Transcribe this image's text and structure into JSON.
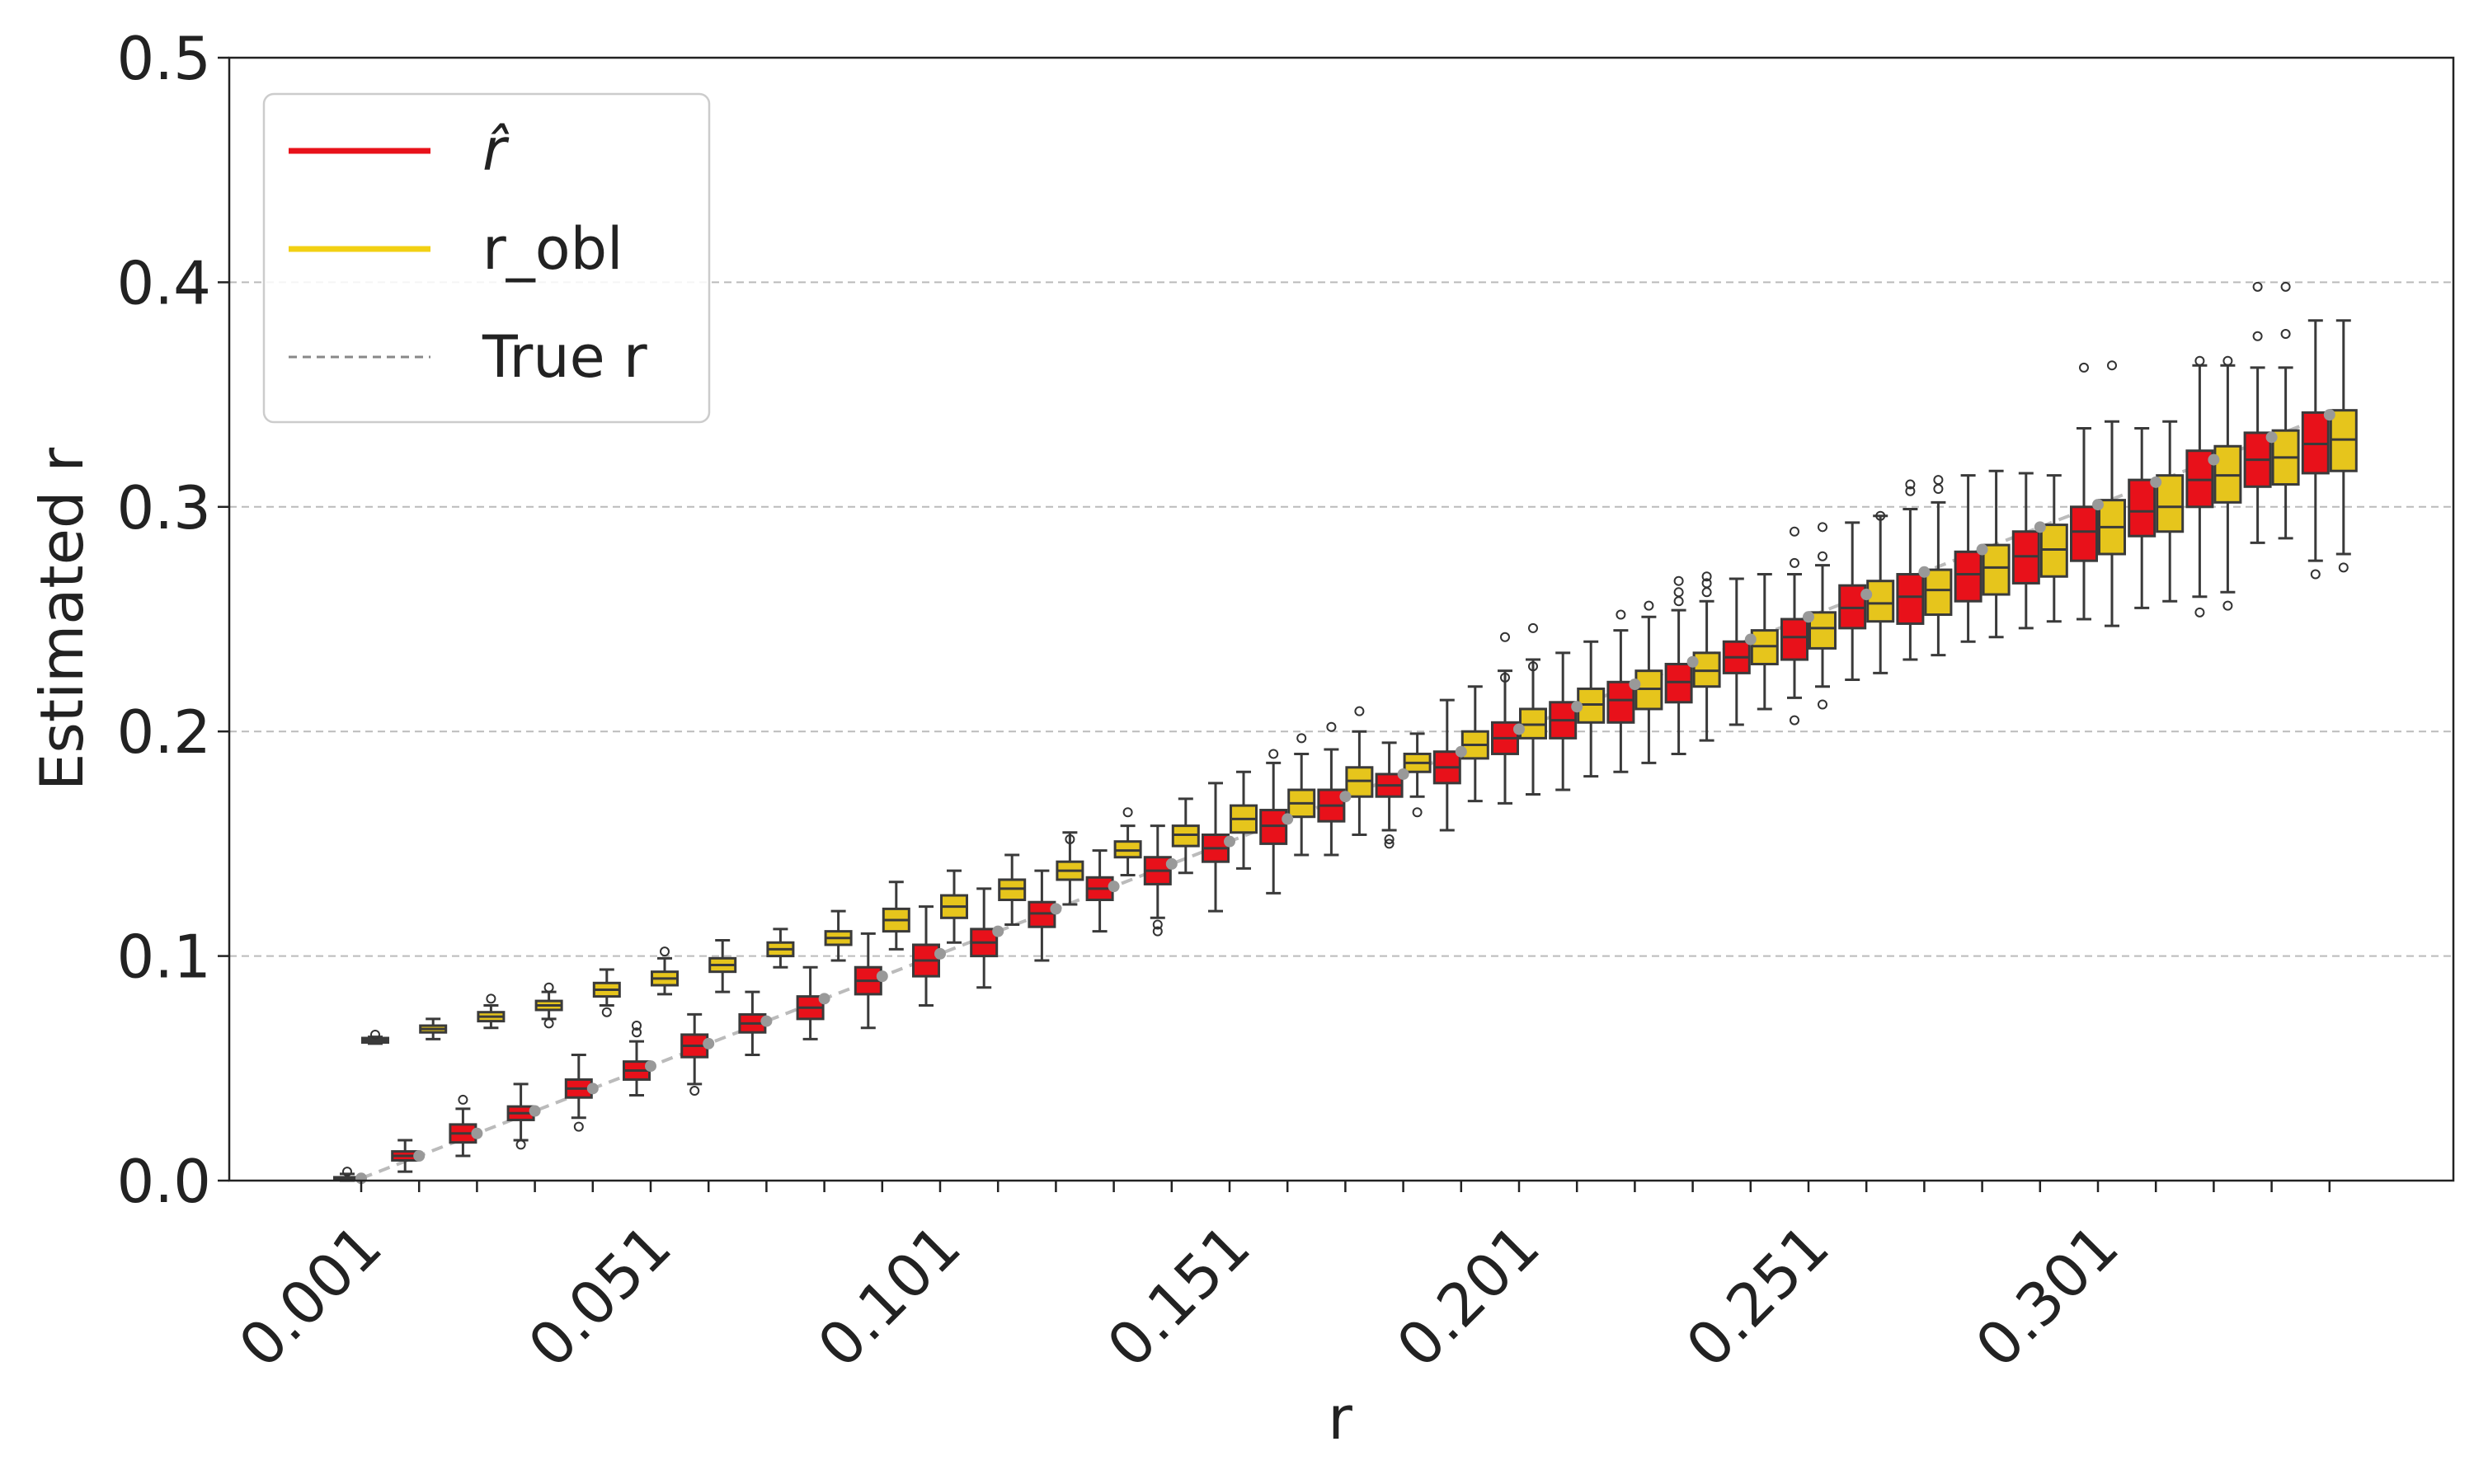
{
  "chart_data": {
    "type": "box",
    "title": "",
    "xlabel": "r",
    "ylabel": "Estimated r",
    "ylim": [
      0.0,
      0.5
    ],
    "yticks": [
      0.0,
      0.1,
      0.2,
      0.3,
      0.4,
      0.5
    ],
    "ytick_labels": [
      "0.0",
      "0.1",
      "0.2",
      "0.3",
      "0.4",
      "0.5"
    ],
    "xtick_labels": [
      "0.001",
      "0.051",
      "0.101",
      "0.151",
      "0.201",
      "0.251",
      "0.301"
    ],
    "xtick_every": 5,
    "grid": "y-dashed",
    "legend_position": "top-left",
    "legend": [
      {
        "label": "r̂",
        "key": "r_hat",
        "color": "#e8111a",
        "style": "solid"
      },
      {
        "label": "r_obl",
        "key": "r_obl",
        "color": "#f2d013",
        "style": "solid"
      },
      {
        "label": "True r",
        "key": "true_r",
        "color": "#888888",
        "style": "dashed"
      }
    ],
    "colors": {
      "r_hat": "#e8111a",
      "r_obl": "#e6c51c",
      "true_line": "#bbbbbb",
      "true_point": "#999999",
      "grid": "#bbbbbb",
      "whisker": "#3a3a3a"
    },
    "groups": [
      {
        "r": 0.001,
        "series": "r_hat",
        "q1": 0.0005,
        "median": 0.001,
        "q3": 0.0015,
        "wlo": 0.0,
        "whi": 0.003,
        "outliers": [
          0.004
        ]
      },
      {
        "r": 0.001,
        "series": "r_obl",
        "q1": 0.0615,
        "median": 0.0625,
        "q3": 0.0635,
        "wlo": 0.061,
        "whi": 0.064,
        "outliers": [
          0.065
        ]
      },
      {
        "r": 0.011,
        "series": "r_hat",
        "q1": 0.009,
        "median": 0.011,
        "q3": 0.013,
        "wlo": 0.004,
        "whi": 0.018,
        "outliers": []
      },
      {
        "r": 0.011,
        "series": "r_obl",
        "q1": 0.066,
        "median": 0.0675,
        "q3": 0.069,
        "wlo": 0.063,
        "whi": 0.072,
        "outliers": []
      },
      {
        "r": 0.021,
        "series": "r_hat",
        "q1": 0.017,
        "median": 0.021,
        "q3": 0.025,
        "wlo": 0.011,
        "whi": 0.032,
        "outliers": [
          0.036
        ]
      },
      {
        "r": 0.021,
        "series": "r_obl",
        "q1": 0.071,
        "median": 0.073,
        "q3": 0.075,
        "wlo": 0.068,
        "whi": 0.078,
        "outliers": [
          0.081
        ]
      },
      {
        "r": 0.031,
        "series": "r_hat",
        "q1": 0.027,
        "median": 0.03,
        "q3": 0.033,
        "wlo": 0.018,
        "whi": 0.043,
        "outliers": [
          0.016
        ]
      },
      {
        "r": 0.031,
        "series": "r_obl",
        "q1": 0.076,
        "median": 0.078,
        "q3": 0.08,
        "wlo": 0.072,
        "whi": 0.084,
        "outliers": [
          0.07,
          0.086
        ]
      },
      {
        "r": 0.041,
        "series": "r_hat",
        "q1": 0.037,
        "median": 0.041,
        "q3": 0.045,
        "wlo": 0.028,
        "whi": 0.056,
        "outliers": [
          0.024
        ]
      },
      {
        "r": 0.041,
        "series": "r_obl",
        "q1": 0.082,
        "median": 0.085,
        "q3": 0.088,
        "wlo": 0.078,
        "whi": 0.094,
        "outliers": [
          0.075
        ]
      },
      {
        "r": 0.051,
        "series": "r_hat",
        "q1": 0.045,
        "median": 0.049,
        "q3": 0.053,
        "wlo": 0.038,
        "whi": 0.062,
        "outliers": [
          0.066,
          0.069
        ]
      },
      {
        "r": 0.051,
        "series": "r_obl",
        "q1": 0.087,
        "median": 0.09,
        "q3": 0.093,
        "wlo": 0.083,
        "whi": 0.099,
        "outliers": [
          0.102
        ]
      },
      {
        "r": 0.061,
        "series": "r_hat",
        "q1": 0.055,
        "median": 0.06,
        "q3": 0.065,
        "wlo": 0.043,
        "whi": 0.074,
        "outliers": [
          0.04
        ]
      },
      {
        "r": 0.061,
        "series": "r_obl",
        "q1": 0.093,
        "median": 0.096,
        "q3": 0.099,
        "wlo": 0.084,
        "whi": 0.107,
        "outliers": []
      },
      {
        "r": 0.071,
        "series": "r_hat",
        "q1": 0.066,
        "median": 0.07,
        "q3": 0.074,
        "wlo": 0.056,
        "whi": 0.084,
        "outliers": []
      },
      {
        "r": 0.071,
        "series": "r_obl",
        "q1": 0.1,
        "median": 0.103,
        "q3": 0.106,
        "wlo": 0.095,
        "whi": 0.112,
        "outliers": []
      },
      {
        "r": 0.081,
        "series": "r_hat",
        "q1": 0.072,
        "median": 0.077,
        "q3": 0.082,
        "wlo": 0.063,
        "whi": 0.095,
        "outliers": []
      },
      {
        "r": 0.081,
        "series": "r_obl",
        "q1": 0.105,
        "median": 0.108,
        "q3": 0.111,
        "wlo": 0.098,
        "whi": 0.12,
        "outliers": []
      },
      {
        "r": 0.091,
        "series": "r_hat",
        "q1": 0.083,
        "median": 0.089,
        "q3": 0.095,
        "wlo": 0.068,
        "whi": 0.11,
        "outliers": []
      },
      {
        "r": 0.091,
        "series": "r_obl",
        "q1": 0.111,
        "median": 0.116,
        "q3": 0.121,
        "wlo": 0.103,
        "whi": 0.133,
        "outliers": []
      },
      {
        "r": 0.101,
        "series": "r_hat",
        "q1": 0.091,
        "median": 0.098,
        "q3": 0.105,
        "wlo": 0.078,
        "whi": 0.122,
        "outliers": []
      },
      {
        "r": 0.101,
        "series": "r_obl",
        "q1": 0.117,
        "median": 0.122,
        "q3": 0.127,
        "wlo": 0.106,
        "whi": 0.138,
        "outliers": []
      },
      {
        "r": 0.111,
        "series": "r_hat",
        "q1": 0.1,
        "median": 0.106,
        "q3": 0.112,
        "wlo": 0.086,
        "whi": 0.13,
        "outliers": []
      },
      {
        "r": 0.111,
        "series": "r_obl",
        "q1": 0.125,
        "median": 0.13,
        "q3": 0.134,
        "wlo": 0.114,
        "whi": 0.145,
        "outliers": []
      },
      {
        "r": 0.121,
        "series": "r_hat",
        "q1": 0.113,
        "median": 0.119,
        "q3": 0.124,
        "wlo": 0.098,
        "whi": 0.138,
        "outliers": []
      },
      {
        "r": 0.121,
        "series": "r_obl",
        "q1": 0.134,
        "median": 0.138,
        "q3": 0.142,
        "wlo": 0.123,
        "whi": 0.155,
        "outliers": [
          0.152
        ]
      },
      {
        "r": 0.131,
        "series": "r_hat",
        "q1": 0.125,
        "median": 0.13,
        "q3": 0.135,
        "wlo": 0.111,
        "whi": 0.147,
        "outliers": []
      },
      {
        "r": 0.131,
        "series": "r_obl",
        "q1": 0.144,
        "median": 0.147,
        "q3": 0.151,
        "wlo": 0.136,
        "whi": 0.158,
        "outliers": [
          0.164
        ]
      },
      {
        "r": 0.141,
        "series": "r_hat",
        "q1": 0.132,
        "median": 0.138,
        "q3": 0.144,
        "wlo": 0.117,
        "whi": 0.158,
        "outliers": [
          0.114,
          0.111
        ]
      },
      {
        "r": 0.141,
        "series": "r_obl",
        "q1": 0.149,
        "median": 0.154,
        "q3": 0.158,
        "wlo": 0.137,
        "whi": 0.17,
        "outliers": []
      },
      {
        "r": 0.151,
        "series": "r_hat",
        "q1": 0.142,
        "median": 0.148,
        "q3": 0.154,
        "wlo": 0.12,
        "whi": 0.177,
        "outliers": []
      },
      {
        "r": 0.151,
        "series": "r_obl",
        "q1": 0.155,
        "median": 0.161,
        "q3": 0.167,
        "wlo": 0.139,
        "whi": 0.182,
        "outliers": []
      },
      {
        "r": 0.161,
        "series": "r_hat",
        "q1": 0.15,
        "median": 0.158,
        "q3": 0.165,
        "wlo": 0.128,
        "whi": 0.186,
        "outliers": [
          0.19
        ]
      },
      {
        "r": 0.161,
        "series": "r_obl",
        "q1": 0.162,
        "median": 0.168,
        "q3": 0.174,
        "wlo": 0.145,
        "whi": 0.19,
        "outliers": [
          0.197
        ]
      },
      {
        "r": 0.171,
        "series": "r_hat",
        "q1": 0.16,
        "median": 0.167,
        "q3": 0.174,
        "wlo": 0.145,
        "whi": 0.192,
        "outliers": [
          0.202
        ]
      },
      {
        "r": 0.171,
        "series": "r_obl",
        "q1": 0.171,
        "median": 0.178,
        "q3": 0.184,
        "wlo": 0.154,
        "whi": 0.2,
        "outliers": [
          0.209
        ]
      },
      {
        "r": 0.181,
        "series": "r_hat",
        "q1": 0.171,
        "median": 0.176,
        "q3": 0.181,
        "wlo": 0.156,
        "whi": 0.195,
        "outliers": [
          0.152,
          0.15
        ]
      },
      {
        "r": 0.181,
        "series": "r_obl",
        "q1": 0.182,
        "median": 0.186,
        "q3": 0.19,
        "wlo": 0.171,
        "whi": 0.199,
        "outliers": [
          0.164
        ]
      },
      {
        "r": 0.191,
        "series": "r_hat",
        "q1": 0.177,
        "median": 0.184,
        "q3": 0.191,
        "wlo": 0.156,
        "whi": 0.214,
        "outliers": []
      },
      {
        "r": 0.191,
        "series": "r_obl",
        "q1": 0.188,
        "median": 0.194,
        "q3": 0.2,
        "wlo": 0.169,
        "whi": 0.22,
        "outliers": []
      },
      {
        "r": 0.201,
        "series": "r_hat",
        "q1": 0.19,
        "median": 0.197,
        "q3": 0.204,
        "wlo": 0.168,
        "whi": 0.227,
        "outliers": [
          0.242,
          0.224
        ]
      },
      {
        "r": 0.201,
        "series": "r_obl",
        "q1": 0.197,
        "median": 0.203,
        "q3": 0.21,
        "wlo": 0.172,
        "whi": 0.232,
        "outliers": [
          0.246,
          0.229
        ]
      },
      {
        "r": 0.211,
        "series": "r_hat",
        "q1": 0.197,
        "median": 0.205,
        "q3": 0.213,
        "wlo": 0.174,
        "whi": 0.235,
        "outliers": []
      },
      {
        "r": 0.211,
        "series": "r_obl",
        "q1": 0.204,
        "median": 0.212,
        "q3": 0.219,
        "wlo": 0.18,
        "whi": 0.24,
        "outliers": []
      },
      {
        "r": 0.221,
        "series": "r_hat",
        "q1": 0.204,
        "median": 0.214,
        "q3": 0.222,
        "wlo": 0.182,
        "whi": 0.245,
        "outliers": [
          0.252
        ]
      },
      {
        "r": 0.221,
        "series": "r_obl",
        "q1": 0.21,
        "median": 0.219,
        "q3": 0.227,
        "wlo": 0.186,
        "whi": 0.251,
        "outliers": [
          0.256
        ]
      },
      {
        "r": 0.231,
        "series": "r_hat",
        "q1": 0.213,
        "median": 0.222,
        "q3": 0.23,
        "wlo": 0.19,
        "whi": 0.254,
        "outliers": [
          0.258,
          0.262,
          0.267
        ]
      },
      {
        "r": 0.231,
        "series": "r_obl",
        "q1": 0.22,
        "median": 0.227,
        "q3": 0.235,
        "wlo": 0.196,
        "whi": 0.258,
        "outliers": [
          0.262,
          0.266,
          0.269
        ]
      },
      {
        "r": 0.241,
        "series": "r_hat",
        "q1": 0.226,
        "median": 0.233,
        "q3": 0.24,
        "wlo": 0.203,
        "whi": 0.268,
        "outliers": []
      },
      {
        "r": 0.241,
        "series": "r_obl",
        "q1": 0.23,
        "median": 0.238,
        "q3": 0.245,
        "wlo": 0.21,
        "whi": 0.27,
        "outliers": []
      },
      {
        "r": 0.251,
        "series": "r_hat",
        "q1": 0.232,
        "median": 0.242,
        "q3": 0.25,
        "wlo": 0.215,
        "whi": 0.27,
        "outliers": [
          0.205,
          0.275,
          0.289
        ]
      },
      {
        "r": 0.251,
        "series": "r_obl",
        "q1": 0.237,
        "median": 0.246,
        "q3": 0.253,
        "wlo": 0.22,
        "whi": 0.274,
        "outliers": [
          0.212,
          0.278,
          0.291
        ]
      },
      {
        "r": 0.261,
        "series": "r_hat",
        "q1": 0.246,
        "median": 0.255,
        "q3": 0.265,
        "wlo": 0.223,
        "whi": 0.293,
        "outliers": []
      },
      {
        "r": 0.261,
        "series": "r_obl",
        "q1": 0.249,
        "median": 0.257,
        "q3": 0.267,
        "wlo": 0.226,
        "whi": 0.296,
        "outliers": [
          0.296
        ]
      },
      {
        "r": 0.271,
        "series": "r_hat",
        "q1": 0.248,
        "median": 0.26,
        "q3": 0.27,
        "wlo": 0.232,
        "whi": 0.299,
        "outliers": [
          0.307,
          0.31
        ]
      },
      {
        "r": 0.271,
        "series": "r_obl",
        "q1": 0.252,
        "median": 0.263,
        "q3": 0.272,
        "wlo": 0.234,
        "whi": 0.302,
        "outliers": [
          0.308,
          0.312
        ]
      },
      {
        "r": 0.281,
        "series": "r_hat",
        "q1": 0.258,
        "median": 0.27,
        "q3": 0.28,
        "wlo": 0.24,
        "whi": 0.314,
        "outliers": []
      },
      {
        "r": 0.281,
        "series": "r_obl",
        "q1": 0.261,
        "median": 0.273,
        "q3": 0.283,
        "wlo": 0.242,
        "whi": 0.316,
        "outliers": []
      },
      {
        "r": 0.291,
        "series": "r_hat",
        "q1": 0.266,
        "median": 0.278,
        "q3": 0.289,
        "wlo": 0.246,
        "whi": 0.315,
        "outliers": []
      },
      {
        "r": 0.291,
        "series": "r_obl",
        "q1": 0.269,
        "median": 0.281,
        "q3": 0.292,
        "wlo": 0.249,
        "whi": 0.314,
        "outliers": []
      },
      {
        "r": 0.301,
        "series": "r_hat",
        "q1": 0.276,
        "median": 0.289,
        "q3": 0.3,
        "wlo": 0.25,
        "whi": 0.335,
        "outliers": [
          0.362
        ]
      },
      {
        "r": 0.301,
        "series": "r_obl",
        "q1": 0.279,
        "median": 0.291,
        "q3": 0.303,
        "wlo": 0.247,
        "whi": 0.338,
        "outliers": [
          0.363
        ]
      },
      {
        "r": 0.311,
        "series": "r_hat",
        "q1": 0.287,
        "median": 0.298,
        "q3": 0.312,
        "wlo": 0.255,
        "whi": 0.335,
        "outliers": []
      },
      {
        "r": 0.311,
        "series": "r_obl",
        "q1": 0.289,
        "median": 0.3,
        "q3": 0.314,
        "wlo": 0.258,
        "whi": 0.338,
        "outliers": []
      },
      {
        "r": 0.321,
        "series": "r_hat",
        "q1": 0.3,
        "median": 0.312,
        "q3": 0.325,
        "wlo": 0.26,
        "whi": 0.363,
        "outliers": [
          0.253,
          0.365
        ]
      },
      {
        "r": 0.321,
        "series": "r_obl",
        "q1": 0.302,
        "median": 0.314,
        "q3": 0.327,
        "wlo": 0.262,
        "whi": 0.363,
        "outliers": [
          0.256,
          0.365
        ]
      },
      {
        "r": 0.331,
        "series": "r_hat",
        "q1": 0.309,
        "median": 0.321,
        "q3": 0.333,
        "wlo": 0.284,
        "whi": 0.362,
        "outliers": [
          0.376,
          0.398
        ]
      },
      {
        "r": 0.331,
        "series": "r_obl",
        "q1": 0.31,
        "median": 0.322,
        "q3": 0.334,
        "wlo": 0.286,
        "whi": 0.362,
        "outliers": [
          0.377,
          0.398
        ]
      },
      {
        "r": 0.341,
        "series": "r_hat",
        "q1": 0.315,
        "median": 0.328,
        "q3": 0.342,
        "wlo": 0.276,
        "whi": 0.383,
        "outliers": [
          0.27
        ]
      },
      {
        "r": 0.341,
        "series": "r_obl",
        "q1": 0.316,
        "median": 0.33,
        "q3": 0.343,
        "wlo": 0.279,
        "whi": 0.383,
        "outliers": [
          0.273
        ]
      }
    ]
  }
}
